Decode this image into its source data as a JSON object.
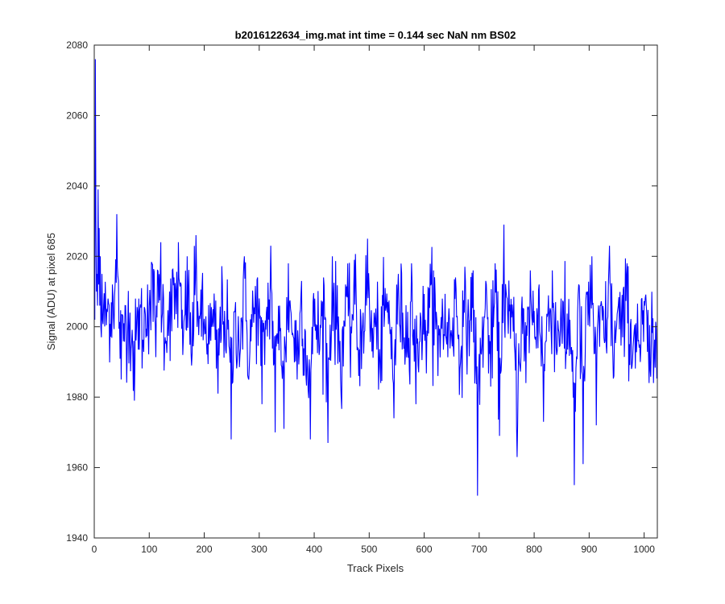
{
  "chart_data": {
    "type": "line",
    "title": "b2016122634_img.mat int time = 0.144 sec  NaN nm BS02",
    "xlabel": "Track Pixels",
    "ylabel": "Signal (ADU) at pixel 685",
    "xlim": [
      0,
      1024
    ],
    "ylim": [
      1940,
      2080
    ],
    "xticks": [
      0,
      100,
      200,
      300,
      400,
      500,
      600,
      700,
      800,
      900,
      1000
    ],
    "yticks": [
      1940,
      1960,
      1980,
      2000,
      2020,
      2040,
      2060,
      2080
    ],
    "grid": false,
    "line_color": "#0000ff",
    "series": [
      {
        "x_start": 1,
        "x_step": 1,
        "baseline": 2000,
        "noise_std": 7,
        "length": 1024,
        "y_head": [
          2002,
          2076,
          2030,
          2010,
          2015,
          2006,
          2039,
          2012,
          2028,
          2006,
          2020,
          2000,
          1997,
          2015,
          2002
        ],
        "values_sampled_every_8": [
          2004,
          2010,
          2006,
          2008,
          2012,
          2034,
          1985,
          2006,
          2004,
          1979,
          2008,
          1996,
          2012,
          2018,
          2006,
          2024,
          1997,
          2010,
          2014,
          2024,
          1992,
          2020,
          1989,
          2026,
          2004,
          1998,
          1995,
          2000,
          1981,
          2012,
          2000,
          1968,
          2007,
          1992,
          2020,
          1985,
          2006,
          2014,
          1978,
          2004,
          2023,
          1970,
          2006,
          1971,
          2018,
          1998,
          1985,
          2013,
          1986,
          1968,
          2008,
          1992,
          2014,
          1967,
          2020,
          2002,
          1980,
          2012,
          1996,
          2019,
          1986,
          2004,
          2025,
          1993,
          2000,
          1984,
          2011,
          2002,
          1974,
          2015,
          2004,
          1993,
          2018,
          1978,
          2004,
          1996,
          2011,
          2016,
          1986,
          2008,
          1995,
          1999,
          2014,
          1988,
          2004,
          2002,
          2016,
          1952,
          1995,
          2012,
          1983,
          2018,
          1969,
          2029,
          1998,
          2004,
          1963,
          2005,
          1984,
          2016,
          1997,
          2012,
          1973,
          2004,
          2016,
          1992,
          2008,
          1988,
          2002,
          1955,
          2012,
          1961,
          2010,
          2020,
          1972,
          2006,
          1996,
          2023,
          1986,
          2006,
          1997,
          2018,
          1988,
          2001,
          1990,
          2006,
          1984
        ]
      }
    ]
  }
}
